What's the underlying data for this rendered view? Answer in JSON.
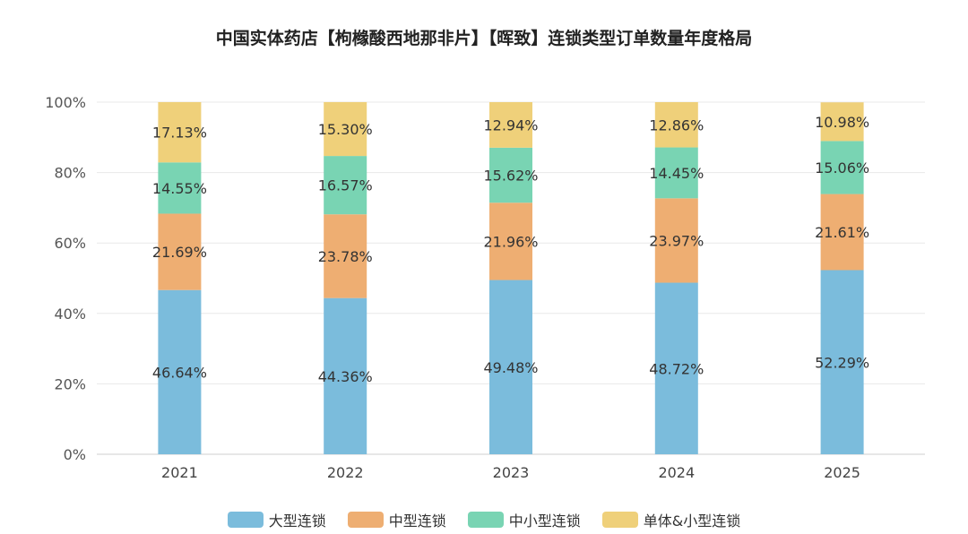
{
  "chart_data": {
    "type": "bar",
    "stacked": true,
    "title": "中国实体药店【枸橼酸西地那非片】【晖致】连锁类型订单数量年度格局",
    "categories": [
      "2021",
      "2022",
      "2023",
      "2024",
      "2025"
    ],
    "ylim": [
      0,
      100
    ],
    "yticks": [
      "0%",
      "20%",
      "40%",
      "60%",
      "80%",
      "100%"
    ],
    "grid": true,
    "legend_position": "bottom",
    "series": [
      {
        "name": "大型连锁",
        "color": "#7bbcdc",
        "values": [
          46.64,
          44.36,
          49.48,
          48.72,
          52.29
        ],
        "labels": [
          "46.64%",
          "44.36%",
          "49.48%",
          "48.72%",
          "52.29%"
        ]
      },
      {
        "name": "中型连锁",
        "color": "#eeae72",
        "values": [
          21.69,
          23.78,
          21.96,
          23.97,
          21.61
        ],
        "labels": [
          "21.69%",
          "23.78%",
          "21.96%",
          "23.97%",
          "21.61%"
        ]
      },
      {
        "name": "中小型连锁",
        "color": "#79d4b3",
        "values": [
          14.55,
          16.57,
          15.62,
          14.45,
          15.06
        ],
        "labels": [
          "14.55%",
          "16.57%",
          "15.62%",
          "14.45%",
          "15.06%"
        ]
      },
      {
        "name": "单体&小型连锁",
        "color": "#efd07a",
        "values": [
          17.13,
          15.3,
          12.94,
          12.86,
          10.98
        ],
        "labels": [
          "17.13%",
          "15.30%",
          "12.94%",
          "12.86%",
          "10.98%"
        ]
      }
    ]
  }
}
